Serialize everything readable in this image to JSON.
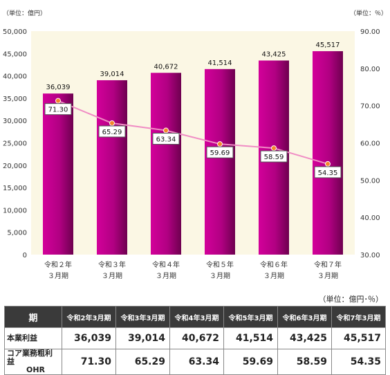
{
  "chart_data": {
    "type": "bar",
    "categories": [
      [
        "令和２年",
        "３月期"
      ],
      [
        "令和３年",
        "３月期"
      ],
      [
        "令和４年",
        "３月期"
      ],
      [
        "令和５年",
        "３月期"
      ],
      [
        "令和６年",
        "３月期"
      ],
      [
        "令和７年",
        "３月期"
      ]
    ],
    "series": [
      {
        "type": "bar",
        "values": [
          36039,
          39014,
          40672,
          41514,
          43425,
          45517
        ],
        "labels": [
          "36,039",
          "39,014",
          "40,672",
          "41,514",
          "43,425",
          "45,517"
        ],
        "axis": "left"
      },
      {
        "type": "line",
        "values": [
          71.3,
          65.29,
          63.34,
          59.69,
          58.59,
          54.35
        ],
        "labels": [
          "71.30",
          "65.29",
          "63.34",
          "59.69",
          "58.59",
          "54.35"
        ],
        "axis": "right"
      }
    ],
    "left_axis": {
      "unit_label": "（単位：億円）",
      "min": 0,
      "max": 50000,
      "ticks": [
        "0",
        "5,000",
        "10,000",
        "15,000",
        "20,000",
        "25,000",
        "30,000",
        "35,000",
        "40,000",
        "45,000",
        "50,000"
      ]
    },
    "right_axis": {
      "unit_label": "（単位：％）",
      "min": 30,
      "max": 90,
      "ticks": [
        "30.00",
        "40.00",
        "50.00",
        "60.00",
        "70.00",
        "80.00",
        "90.00"
      ]
    },
    "grid": false,
    "colors": {
      "bar": "#c0008a",
      "bar_dark": "#7a0057",
      "line": "#f08cc4",
      "marker": "#f4862a",
      "plot_bg": "#fbf7e4"
    }
  },
  "table": {
    "unit": "（単位：億円･％）",
    "header_first": "期",
    "columns": [
      "令和2年3月期",
      "令和3年3月期",
      "令和4年3月期",
      "令和5年3月期",
      "令和6年3月期",
      "令和7年3月期"
    ],
    "rows": [
      {
        "label": "本業利益",
        "values": [
          "36,039",
          "39,014",
          "40,672",
          "41,514",
          "43,425",
          "45,517"
        ]
      },
      {
        "label_lines": [
          "コア業務粗利益",
          "OHR"
        ],
        "values": [
          "71.30",
          "65.29",
          "63.34",
          "59.69",
          "58.59",
          "54.35"
        ]
      }
    ]
  }
}
